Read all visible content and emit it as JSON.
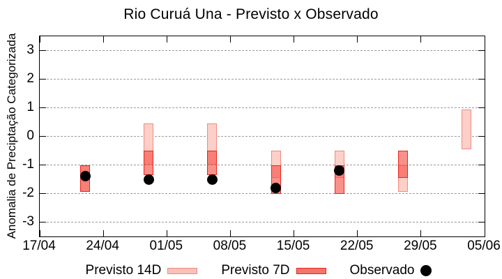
{
  "chart_data": {
    "type": "candlestick-range",
    "title": "Rio Curuá Una - Previsto x Observado",
    "ylabel": "Anomalia de Preciptação Categorizada",
    "xlabel": "",
    "grid": "horizontal-dashed-gray",
    "legend_position": "bottom-center",
    "ylim": [
      -3.5,
      3.5
    ],
    "yticks": [
      -3,
      -2,
      -1,
      0,
      1,
      2,
      3
    ],
    "xtick_labels": [
      "17/04",
      "24/04",
      "01/05",
      "08/05",
      "15/05",
      "22/05",
      "29/05",
      "05/06"
    ],
    "xtick_day_offsets": [
      0,
      7,
      14,
      21,
      28,
      35,
      42,
      49
    ],
    "x_range_days": 49,
    "legend": [
      {
        "label": "Previsto 14D",
        "key": "box",
        "fill": "#f8c2b8",
        "border": "#f0897f"
      },
      {
        "label": "Previsto 7D",
        "key": "box",
        "fill": "#f4756b",
        "border": "#e8231c"
      },
      {
        "label": "Observado",
        "key": "dot",
        "fill": "#000000"
      }
    ],
    "colors": {
      "p14_fill": "#fcd0c9",
      "p14_border": "#f0897f",
      "p7_fill": "rgba(246,78,66,0.62)",
      "p7_border": "#e8231c",
      "p14_p7_overlap_seen": "#f97b71",
      "observed": "#000000",
      "grid": "#9a9a9a",
      "axis": "#000000"
    },
    "points": [
      {
        "day_offset": 5,
        "previsto_14d": [
          -1.0,
          -1.95
        ],
        "previsto_7d": [
          -1.0,
          -1.95
        ],
        "observado": -1.4
      },
      {
        "day_offset": 12,
        "previsto_14d": [
          0.45,
          -1.0
        ],
        "previsto_7d": [
          -0.5,
          -1.35
        ],
        "observado": -1.5
      },
      {
        "day_offset": 19,
        "previsto_14d": [
          0.45,
          -1.0
        ],
        "previsto_7d": [
          -0.5,
          -1.35
        ],
        "observado": -1.5
      },
      {
        "day_offset": 26,
        "previsto_14d": [
          -0.5,
          -1.45
        ],
        "previsto_7d": [
          -1.0,
          -2.0
        ],
        "observado": -1.8
      },
      {
        "day_offset": 33,
        "previsto_14d": [
          -0.5,
          -1.45
        ],
        "previsto_7d": [
          -1.0,
          -2.0
        ],
        "observado": -1.2
      },
      {
        "day_offset": 40,
        "previsto_14d": [
          -1.0,
          -1.95
        ],
        "previsto_7d": [
          -0.5,
          -1.45
        ],
        "observado": null
      },
      {
        "day_offset": 47,
        "previsto_14d": [
          0.95,
          -0.45
        ],
        "previsto_7d": null,
        "observado": null
      }
    ]
  }
}
